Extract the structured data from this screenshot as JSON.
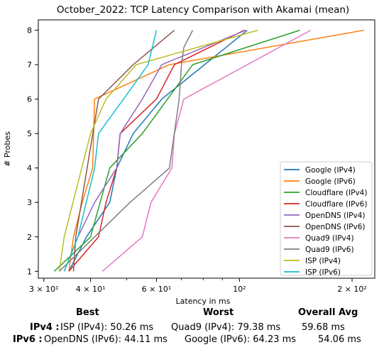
{
  "chart_data": {
    "type": "line",
    "title": "October_2022: TCP Latency Comparison with Akamai (mean)",
    "xlabel": "Latency in ms",
    "ylabel": "# Probes",
    "xscale": "log",
    "xlim": [
      29,
      230
    ],
    "ylim": [
      0.8,
      8.3
    ],
    "x_ticks": [
      {
        "value": 30,
        "label": "3 × 10¹"
      },
      {
        "value": 40,
        "label": "4 × 10¹"
      },
      {
        "value": 60,
        "label": "6 × 10¹"
      },
      {
        "value": 100,
        "label": "10²"
      },
      {
        "value": 200,
        "label": "2 × 10²"
      }
    ],
    "y_ticks": [
      1,
      2,
      3,
      4,
      5,
      6,
      7,
      8
    ],
    "legend_position": "lower-right",
    "series": [
      {
        "name": "Google (IPv4)",
        "color": "#1f77b4",
        "x": [
          35.0,
          39.0,
          45.0,
          47.0,
          52.0,
          62.0,
          105.0
        ],
        "y": [
          1,
          2,
          3,
          4,
          5,
          6,
          8
        ]
      },
      {
        "name": "Google (IPv6)",
        "color": "#ff7f0e",
        "x": [
          35.0,
          36.0,
          38.0,
          40.5,
          41.0,
          65.0,
          215.0
        ],
        "y": [
          1,
          2,
          3,
          4,
          6,
          7,
          8
        ]
      },
      {
        "name": "Cloudflare (IPv4)",
        "color": "#2ca02c",
        "x": [
          32.0,
          40.0,
          45.0,
          55.0,
          75.0,
          145.0
        ],
        "y": [
          1,
          2,
          4,
          5,
          7,
          8
        ]
      },
      {
        "name": "Cloudflare (IPv6)",
        "color": "#d62728",
        "x": [
          35.0,
          42.0,
          44.0,
          47.0,
          48.0,
          60.0,
          67.0,
          103.0
        ],
        "y": [
          1,
          2,
          3,
          4,
          5,
          6,
          7,
          8
        ]
      },
      {
        "name": "OpenDNS (IPv4)",
        "color": "#9467bd",
        "x": [
          34.0,
          37.0,
          41.0,
          47.0,
          48.0,
          55.0,
          62.0,
          104.0
        ],
        "y": [
          1,
          2,
          3,
          4,
          5,
          6,
          7,
          8
        ]
      },
      {
        "name": "OpenDNS (IPv6)",
        "color": "#8c564b",
        "x": [
          36.0,
          36.5,
          42.0,
          52.0,
          67.0
        ],
        "y": [
          1,
          2,
          6,
          7,
          8
        ]
      },
      {
        "name": "Quad9 (IPv4)",
        "color": "#e377c2",
        "x": [
          43.0,
          55.0,
          58.0,
          66.0,
          67.0,
          71.0,
          105.0,
          155.0
        ],
        "y": [
          1,
          2,
          3,
          4,
          5,
          6,
          7,
          8
        ]
      },
      {
        "name": "Quad9 (IPv6)",
        "color": "#7f7f7f",
        "x": [
          33.0,
          41.0,
          51.0,
          65.0,
          69.0,
          70.0,
          71.0,
          75.0
        ],
        "y": [
          1,
          2,
          3,
          4,
          6,
          7,
          7.5,
          8
        ]
      },
      {
        "name": "ISP (IPv4)",
        "color": "#bcbd22",
        "x": [
          33.0,
          34.0,
          40.0,
          44.0,
          53.0,
          112.0
        ],
        "y": [
          1,
          2,
          5,
          6,
          7,
          8
        ]
      },
      {
        "name": "ISP (IPv6)",
        "color": "#17becf",
        "x": [
          34.0,
          37.0,
          41.0,
          42.0,
          49.0,
          57.0,
          60.0
        ],
        "y": [
          1,
          2,
          4,
          5,
          6,
          7,
          8
        ]
      }
    ]
  },
  "summary": {
    "headers": {
      "best": "Best",
      "worst": "Worst",
      "avg": "Overall Avg"
    },
    "rows": [
      {
        "label": "IPv4 :",
        "best": "ISP (IPv4): 50.26 ms",
        "worst": "Quad9 (IPv4): 79.38 ms",
        "avg": "59.68 ms"
      },
      {
        "label": "IPv6 :",
        "best": "OpenDNS (IPv6): 44.11 ms",
        "worst": "Google (IPv6): 64.23 ms",
        "avg": "54.06 ms"
      }
    ]
  }
}
